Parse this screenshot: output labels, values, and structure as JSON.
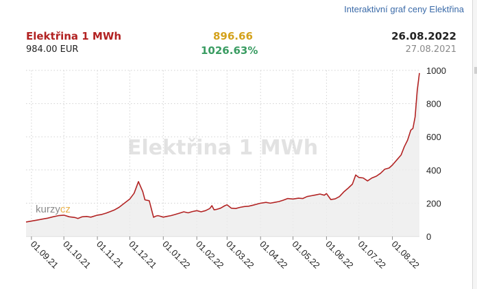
{
  "header": {
    "link_text": "Interaktivní graf ceny Elektřina",
    "title": "Elektřina 1 MWh",
    "price": "984.00 EUR",
    "change": "896.66",
    "change_pct": "1026.63%",
    "date_current": "26.08.2022",
    "date_start": "27.08.2021"
  },
  "colors": {
    "line": "#b22222",
    "area": "#ececec",
    "grid": "#d0d0d0",
    "title": "#b22222",
    "change": "#d4a21c",
    "pct": "#3a9c62",
    "link": "#3a6aa8"
  },
  "logo": {
    "part1": "kurzy",
    "part2": "cz"
  },
  "chart_data": {
    "type": "area",
    "title": "Elektřina 1 MWh",
    "watermark": "Elektřina 1 MWh",
    "xlabel": "",
    "ylabel": "",
    "ylim": [
      0,
      1000
    ],
    "yticks": [
      0,
      200,
      400,
      600,
      800,
      1000
    ],
    "y_tick_labels": [
      "0",
      "200",
      "400",
      "600",
      "800",
      "1000"
    ],
    "x_tick_labels": [
      "01.09.21",
      "01.10.21",
      "01.11.21",
      "01.12.21",
      "01.01.22",
      "01.02.22",
      "01.03.22",
      "01.04.22",
      "01.05.22",
      "01.06.22",
      "01.07.22",
      "01.08.22"
    ],
    "x_tick_days": [
      5,
      35,
      66,
      96,
      127,
      158,
      186,
      217,
      247,
      278,
      308,
      339
    ],
    "x_range_days": [
      0,
      364
    ],
    "grid": true,
    "series": [
      {
        "name": "Elektřina 1 MWh (EUR)",
        "days": [
          0,
          5,
          10,
          15,
          20,
          25,
          30,
          35,
          40,
          45,
          48,
          52,
          56,
          60,
          66,
          70,
          74,
          78,
          82,
          86,
          90,
          94,
          96,
          100,
          104,
          108,
          110,
          114,
          117,
          118,
          120,
          122,
          124,
          126,
          127,
          130,
          134,
          138,
          142,
          146,
          150,
          154,
          158,
          162,
          166,
          170,
          172,
          174,
          176,
          180,
          184,
          186,
          190,
          194,
          198,
          202,
          206,
          210,
          214,
          217,
          222,
          226,
          230,
          234,
          238,
          242,
          247,
          252,
          256,
          260,
          264,
          268,
          272,
          276,
          278,
          282,
          286,
          290,
          294,
          298,
          302,
          305,
          308,
          312,
          316,
          320,
          324,
          328,
          332,
          336,
          339,
          343,
          347,
          350,
          353,
          356,
          358,
          360,
          362,
          364
        ],
        "values": [
          87,
          92,
          98,
          104,
          110,
          118,
          125,
          128,
          118,
          114,
          108,
          118,
          120,
          116,
          128,
          132,
          140,
          150,
          160,
          175,
          195,
          215,
          225,
          260,
          330,
          270,
          220,
          215,
          140,
          115,
          122,
          125,
          122,
          118,
          116,
          120,
          125,
          132,
          140,
          148,
          142,
          150,
          155,
          148,
          155,
          168,
          185,
          160,
          162,
          170,
          185,
          190,
          170,
          168,
          175,
          180,
          182,
          188,
          195,
          200,
          205,
          200,
          205,
          210,
          218,
          228,
          225,
          230,
          228,
          240,
          245,
          250,
          255,
          248,
          258,
          222,
          226,
          240,
          268,
          290,
          315,
          370,
          355,
          352,
          334,
          352,
          362,
          380,
          405,
          412,
          430,
          460,
          490,
          540,
          580,
          640,
          650,
          720,
          880,
          984
        ]
      }
    ]
  }
}
